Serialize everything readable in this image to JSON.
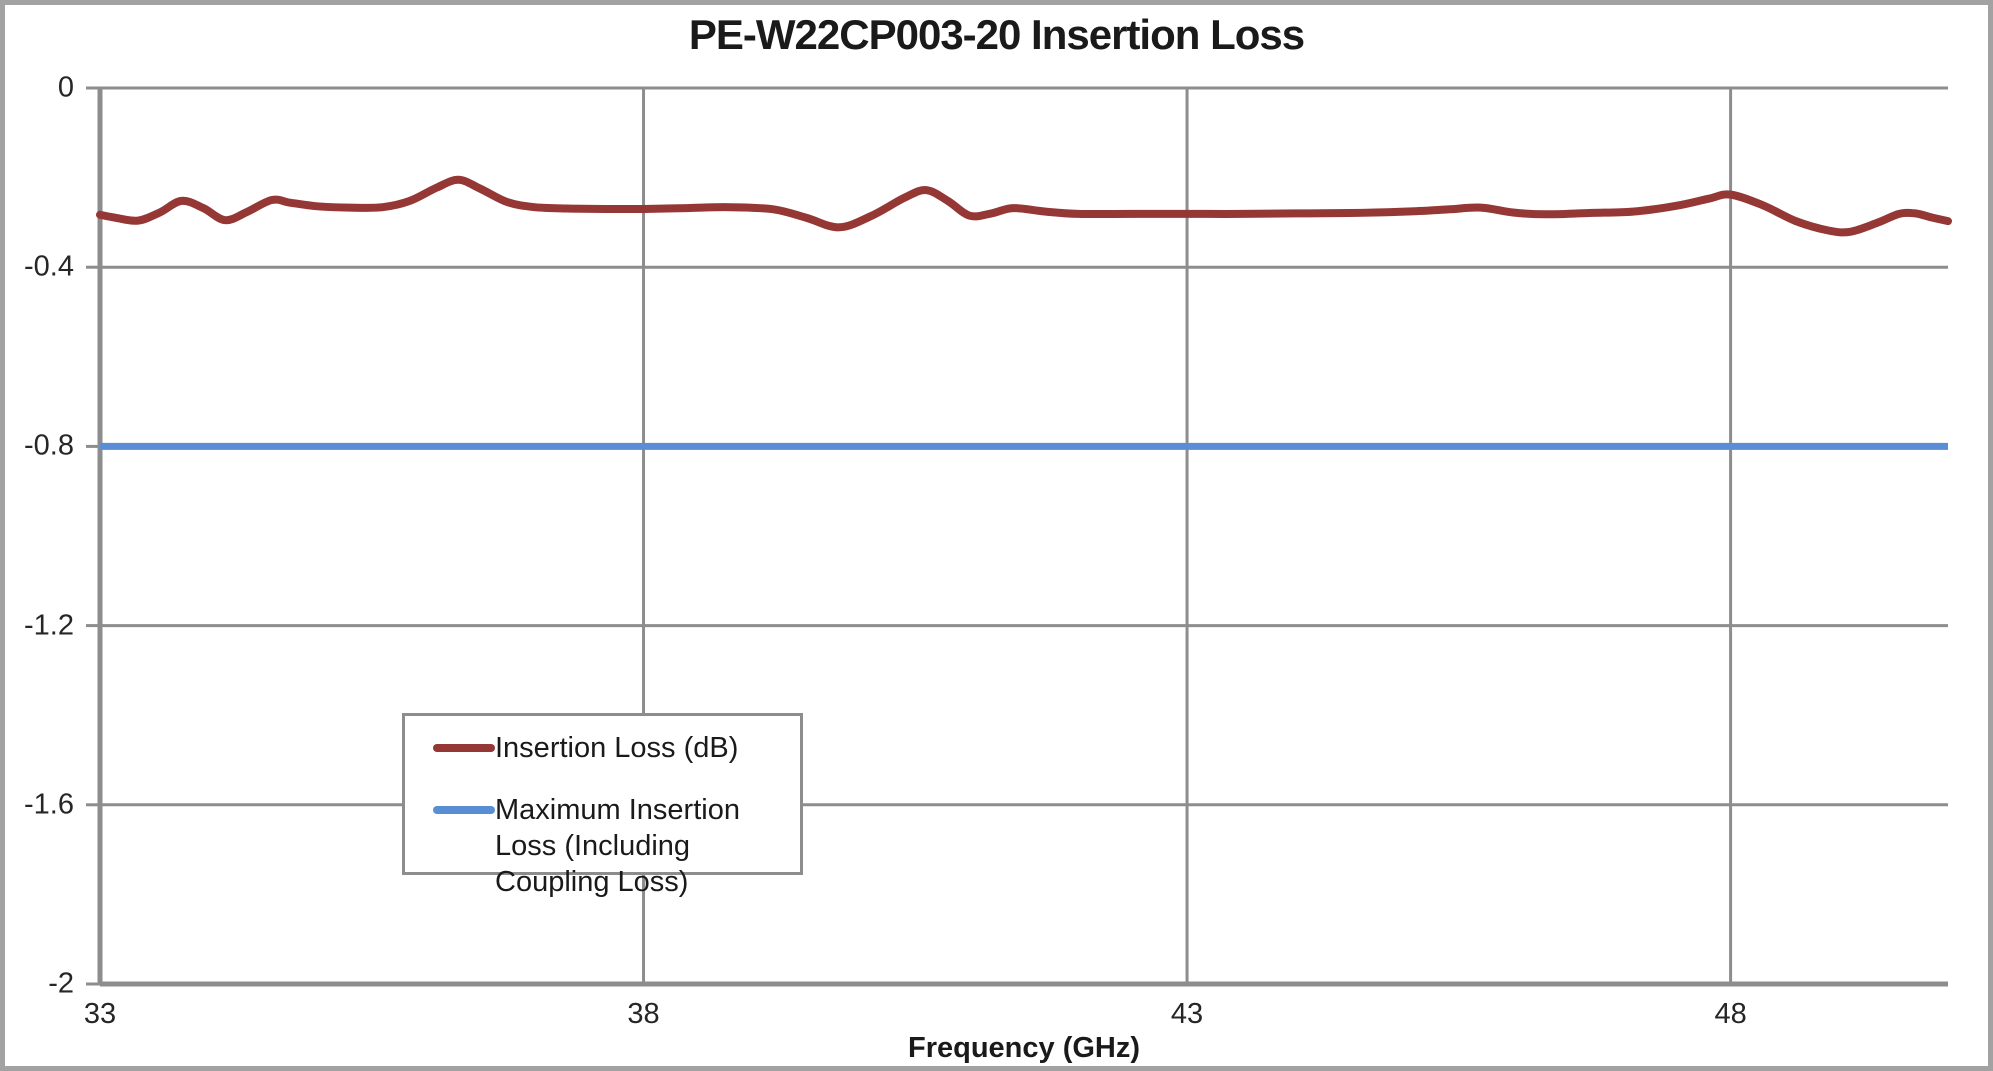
{
  "title": "PE-W22CP003-20 Insertion Loss",
  "colors": {
    "insertion_loss": "#953735",
    "max_insertion_loss": "#5a8ed4",
    "gridline": "#8d8d8d",
    "axis": "#8d8d8d",
    "chart_border": "#a2a2a2",
    "text": "#1a1a1a"
  },
  "legend": {
    "items": [
      {
        "label": "Insertion Loss (dB)",
        "color_key": "insertion_loss"
      },
      {
        "label": "Maximum Insertion Loss (Including Coupling Loss)",
        "color_key": "max_insertion_loss"
      }
    ]
  },
  "chart_data": {
    "type": "line",
    "title": "PE-W22CP003-20 Insertion Loss",
    "xlabel": "Frequency (GHz)",
    "ylabel": "",
    "xlim": [
      33,
      50
    ],
    "ylim": [
      -2,
      0
    ],
    "grid": true,
    "legend_position": "inside-center-left",
    "x_ticks": [
      {
        "label": "33",
        "value": 33
      },
      {
        "label": "38",
        "value": 38
      },
      {
        "label": "43",
        "value": 43
      },
      {
        "label": "48",
        "value": 48
      }
    ],
    "y_ticks": [
      {
        "label": "0",
        "value": 0
      },
      {
        "label": "-0.4",
        "value": -0.4
      },
      {
        "label": "-0.8",
        "value": -0.8
      },
      {
        "label": "-1.2",
        "value": -1.2
      },
      {
        "label": "-1.6",
        "value": -1.6
      },
      {
        "label": "-2",
        "value": -2
      }
    ],
    "series": [
      {
        "name": "Insertion Loss (dB)",
        "color_key": "insertion_loss",
        "smooth": true,
        "points": [
          [
            33.0,
            -0.283
          ],
          [
            33.15,
            -0.29
          ],
          [
            33.35,
            -0.296
          ],
          [
            33.55,
            -0.278
          ],
          [
            33.75,
            -0.252
          ],
          [
            33.95,
            -0.268
          ],
          [
            34.15,
            -0.295
          ],
          [
            34.35,
            -0.277
          ],
          [
            34.58,
            -0.25
          ],
          [
            34.75,
            -0.256
          ],
          [
            35.0,
            -0.264
          ],
          [
            35.3,
            -0.267
          ],
          [
            35.6,
            -0.266
          ],
          [
            35.85,
            -0.252
          ],
          [
            36.1,
            -0.222
          ],
          [
            36.3,
            -0.205
          ],
          [
            36.5,
            -0.225
          ],
          [
            36.75,
            -0.255
          ],
          [
            37.0,
            -0.266
          ],
          [
            37.3,
            -0.269
          ],
          [
            37.7,
            -0.27
          ],
          [
            38.0,
            -0.27
          ],
          [
            38.4,
            -0.268
          ],
          [
            38.8,
            -0.266
          ],
          [
            39.2,
            -0.271
          ],
          [
            39.5,
            -0.29
          ],
          [
            39.8,
            -0.311
          ],
          [
            40.1,
            -0.285
          ],
          [
            40.4,
            -0.245
          ],
          [
            40.6,
            -0.228
          ],
          [
            40.8,
            -0.252
          ],
          [
            41.0,
            -0.285
          ],
          [
            41.2,
            -0.28
          ],
          [
            41.4,
            -0.268
          ],
          [
            41.7,
            -0.276
          ],
          [
            42.0,
            -0.281
          ],
          [
            42.5,
            -0.281
          ],
          [
            43.0,
            -0.281
          ],
          [
            43.5,
            -0.281
          ],
          [
            44.0,
            -0.28
          ],
          [
            44.5,
            -0.279
          ],
          [
            45.0,
            -0.276
          ],
          [
            45.4,
            -0.271
          ],
          [
            45.7,
            -0.267
          ],
          [
            46.0,
            -0.278
          ],
          [
            46.3,
            -0.282
          ],
          [
            46.7,
            -0.279
          ],
          [
            47.1,
            -0.276
          ],
          [
            47.5,
            -0.263
          ],
          [
            47.8,
            -0.247
          ],
          [
            48.0,
            -0.238
          ],
          [
            48.3,
            -0.262
          ],
          [
            48.6,
            -0.297
          ],
          [
            48.9,
            -0.318
          ],
          [
            49.1,
            -0.321
          ],
          [
            49.35,
            -0.301
          ],
          [
            49.55,
            -0.281
          ],
          [
            49.7,
            -0.28
          ],
          [
            49.85,
            -0.289
          ],
          [
            50.0,
            -0.297
          ]
        ]
      },
      {
        "name": "Maximum Insertion Loss (Including Coupling Loss)",
        "color_key": "max_insertion_loss",
        "smooth": false,
        "points": [
          [
            33,
            -0.8
          ],
          [
            50,
            -0.8
          ]
        ]
      }
    ]
  }
}
